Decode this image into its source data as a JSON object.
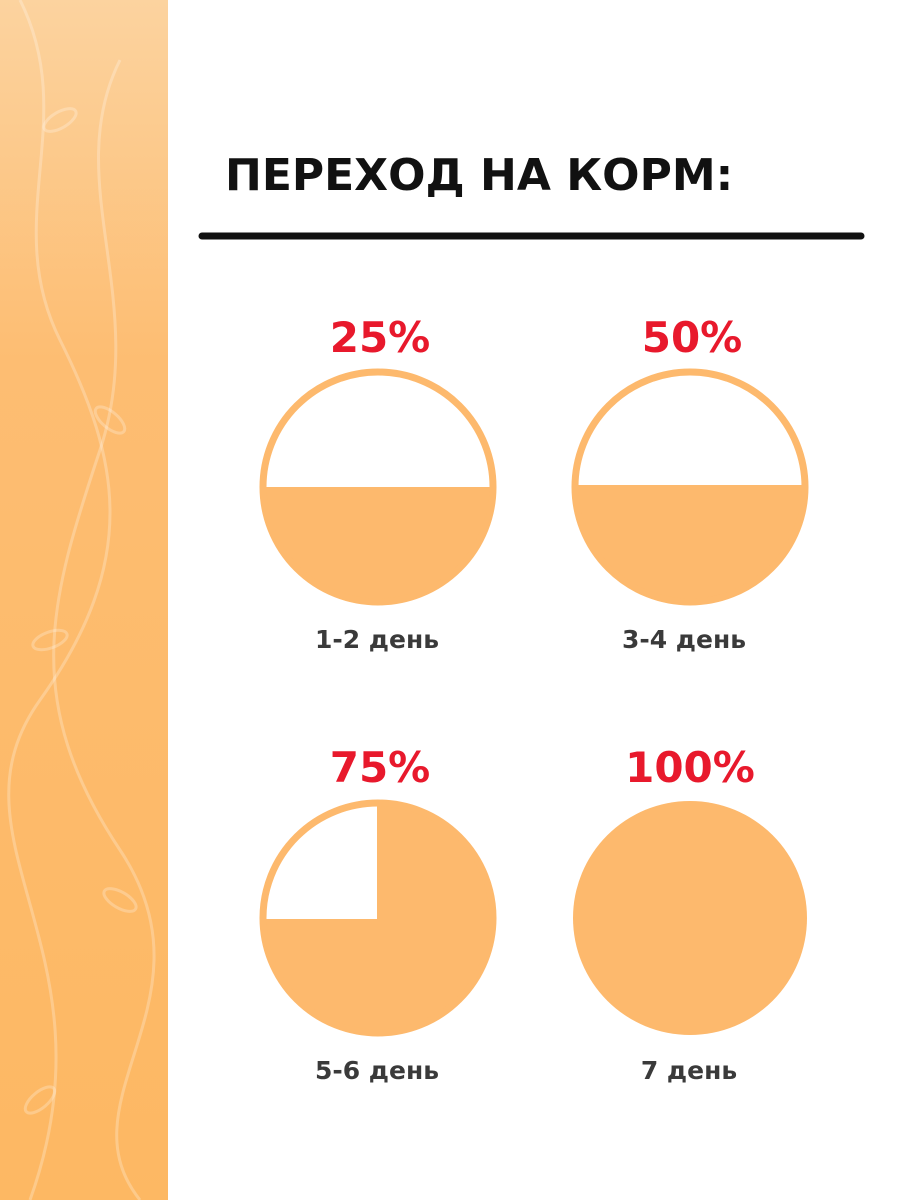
{
  "header": {
    "title": "ПЕРЕХОД НА КОРМ:"
  },
  "items": [
    {
      "percent": "25%",
      "day": "1-2 день"
    },
    {
      "percent": "50%",
      "day": "3-4 день"
    },
    {
      "percent": "75%",
      "day": "5-6 день"
    },
    {
      "percent": "100%",
      "day": "7 день"
    }
  ]
}
